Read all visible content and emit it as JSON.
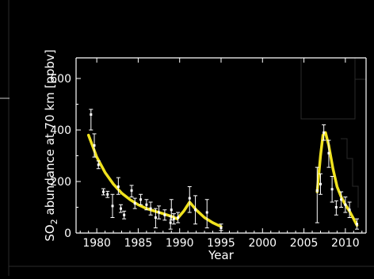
{
  "chart_data": {
    "type": "line",
    "title": "",
    "xlabel": "Year",
    "ylabel_parts": [
      "SO",
      "2",
      " abundance at 70 km [ppbv]"
    ],
    "xlim": [
      1977.5,
      2012.5
    ],
    "ylim": [
      0,
      680
    ],
    "x_ticks": [
      1980,
      1985,
      1990,
      1995,
      2000,
      2005,
      2010
    ],
    "y_ticks": [
      0,
      200,
      400,
      600
    ],
    "grid": false,
    "colors": {
      "background": "#000000",
      "axes": "#ffffff",
      "points": "#ffffff",
      "fit": "#f0e21e"
    },
    "series": [
      {
        "kind": "measurements",
        "points": [
          {
            "x": 1979.3,
            "y": 460,
            "low": 400,
            "high": 480
          },
          {
            "x": 1979.7,
            "y": 340,
            "low": 295,
            "high": 385
          },
          {
            "x": 1980.2,
            "y": 265,
            "low": 250,
            "high": 280
          },
          {
            "x": 1980.8,
            "y": 160,
            "low": 148,
            "high": 172
          },
          {
            "x": 1981.3,
            "y": 150,
            "low": 138,
            "high": 162
          },
          {
            "x": 1981.9,
            "y": 105,
            "low": 60,
            "high": 150
          },
          {
            "x": 1982.6,
            "y": 180,
            "low": 150,
            "high": 215
          },
          {
            "x": 1982.9,
            "y": 95,
            "low": 80,
            "high": 110
          },
          {
            "x": 1983.3,
            "y": 70,
            "low": 55,
            "high": 85
          },
          {
            "x": 1984.2,
            "y": 165,
            "low": 140,
            "high": 185
          },
          {
            "x": 1984.6,
            "y": 115,
            "low": 95,
            "high": 135
          },
          {
            "x": 1985.3,
            "y": 130,
            "low": 110,
            "high": 150
          },
          {
            "x": 1986.0,
            "y": 110,
            "low": 90,
            "high": 130
          },
          {
            "x": 1986.5,
            "y": 95,
            "low": 70,
            "high": 120
          },
          {
            "x": 1987.1,
            "y": 60,
            "low": 20,
            "high": 95
          },
          {
            "x": 1987.5,
            "y": 80,
            "low": 55,
            "high": 105
          },
          {
            "x": 1988.2,
            "y": 70,
            "low": 50,
            "high": 90
          },
          {
            "x": 1988.9,
            "y": 40,
            "low": 15,
            "high": 65
          },
          {
            "x": 1989.0,
            "y": 90,
            "low": 50,
            "high": 130
          },
          {
            "x": 1989.3,
            "y": 55,
            "low": 35,
            "high": 75
          },
          {
            "x": 1989.8,
            "y": 60,
            "low": 40,
            "high": 80
          },
          {
            "x": 1991.2,
            "y": 135,
            "low": 80,
            "high": 180
          },
          {
            "x": 1991.9,
            "y": 90,
            "low": 35,
            "high": 145
          },
          {
            "x": 1993.3,
            "y": 80,
            "low": 20,
            "high": 130
          },
          {
            "x": 1995.0,
            "y": 20,
            "low": 10,
            "high": 35
          },
          {
            "x": 2006.6,
            "y": 165,
            "low": 40,
            "high": 255
          },
          {
            "x": 2007.0,
            "y": 190,
            "low": 150,
            "high": 230
          },
          {
            "x": 2007.4,
            "y": 390,
            "low": 360,
            "high": 420
          },
          {
            "x": 2008.0,
            "y": 310,
            "low": 255,
            "high": 360
          },
          {
            "x": 2008.4,
            "y": 170,
            "low": 120,
            "high": 220
          },
          {
            "x": 2008.9,
            "y": 100,
            "low": 70,
            "high": 125
          },
          {
            "x": 2009.5,
            "y": 130,
            "low": 100,
            "high": 160
          },
          {
            "x": 2010.0,
            "y": 110,
            "low": 80,
            "high": 140
          },
          {
            "x": 2010.5,
            "y": 90,
            "low": 60,
            "high": 120
          },
          {
            "x": 2011.4,
            "y": 35,
            "low": 15,
            "high": 55
          }
        ]
      },
      {
        "kind": "fit",
        "segments": [
          {
            "x": [
              1979.0,
              1980.0,
              1981.0,
              1982.0,
              1983.0,
              1984.0,
              1985.0,
              1986.0,
              1987.0,
              1988.0,
              1989.0,
              1989.7,
              1990.5,
              1991.2,
              1992.0,
              1993.0,
              1994.0,
              1995.0
            ],
            "y": [
              380,
              295,
              235,
              190,
              155,
              130,
              110,
              95,
              85,
              75,
              65,
              55,
              85,
              120,
              90,
              60,
              40,
              25
            ]
          },
          {
            "x": [
              2006.6,
              2007.0,
              2007.3,
              2007.6,
              2008.0,
              2008.5,
              2009.0,
              2009.5,
              2010.0,
              2010.5,
              2011.0,
              2011.4
            ],
            "y": [
              160,
              300,
              380,
              390,
              340,
              250,
              180,
              140,
              110,
              85,
              55,
              30
            ]
          }
        ]
      }
    ]
  }
}
